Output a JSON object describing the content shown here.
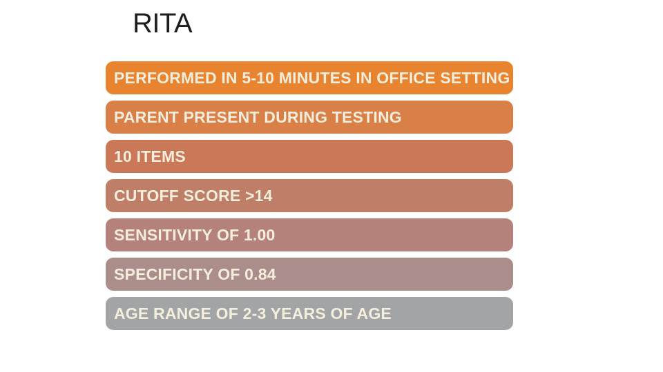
{
  "slide": {
    "title": "RITA",
    "background_color": "#FFFFFF",
    "title_color": "#1E1E1E"
  },
  "bar_list": {
    "text_color": "#F5EEDC",
    "items": [
      {
        "label": "PERFORMED IN 5-10 MINUTES IN OFFICE SETTING",
        "color": "#E8842F"
      },
      {
        "label": "PARENT PRESENT DURING TESTING",
        "color": "#D97F48"
      },
      {
        "label": "10 ITEMS",
        "color": "#CB7858"
      },
      {
        "label": "CUTOFF SCORE >14",
        "color": "#BF7E67"
      },
      {
        "label": "SENSITIVITY OF 1.00",
        "color": "#B4827A"
      },
      {
        "label": "SPECIFICITY OF 0.84",
        "color": "#AB8D8C"
      },
      {
        "label": "AGE RANGE OF 2-3 YEARS OF AGE",
        "color": "#A3A4A6"
      }
    ]
  }
}
